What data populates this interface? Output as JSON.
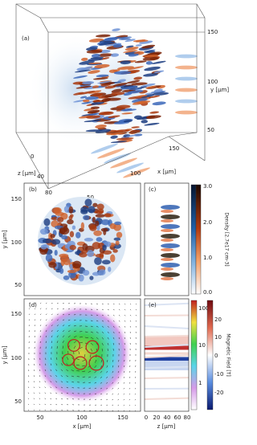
{
  "panels": {
    "a": {
      "label": "(a)",
      "y_label": "y [μm]",
      "y_ticks": [
        "150",
        "100",
        "50"
      ],
      "x_label": "x [μm]",
      "x_ticks": [
        "150",
        "100",
        "50"
      ],
      "z_label": "z [μm]",
      "z_ticks": [
        "0",
        "40",
        "80"
      ]
    },
    "b": {
      "label": "(b)",
      "y_label": "y [μm]",
      "y_ticks": [
        "150",
        "100",
        "50"
      ]
    },
    "c": {
      "label": "(c)"
    },
    "d": {
      "label": "(d)",
      "y_label": "y [μm]",
      "y_ticks": [
        "150",
        "100",
        "50"
      ],
      "x_label": "x [μm]",
      "x_ticks": [
        "50",
        "100",
        "150"
      ]
    },
    "e": {
      "label": "(e)",
      "x_label": "z [μm]",
      "x_ticks": [
        "0",
        "20",
        "40",
        "60",
        "80"
      ]
    }
  },
  "colorbars": {
    "density": {
      "title": "Density [2.7e17 cm-3]",
      "ticks": [
        "3.0",
        "2.0",
        "1.0",
        "0.0"
      ]
    },
    "field_magnitude": {
      "ticks": [
        "100",
        "10",
        "1"
      ]
    },
    "field": {
      "title": "Magnetic Field [T]",
      "ticks": [
        "20",
        "10",
        "0",
        "-10",
        "-20"
      ]
    }
  }
}
